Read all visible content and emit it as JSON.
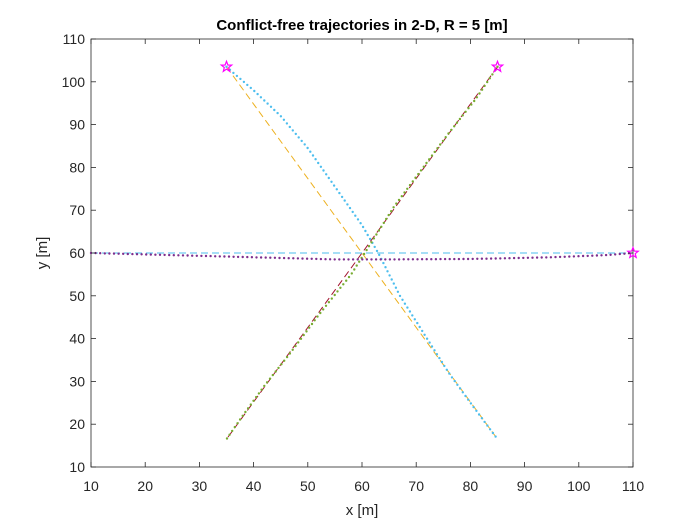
{
  "chart_data": {
    "type": "line",
    "title": "Conflict-free trajectories in 2-D, R = 5 [m]",
    "xlabel": "x [m]",
    "ylabel": "y [m]",
    "xlim": [
      10,
      110
    ],
    "ylim": [
      10,
      110
    ],
    "xticks": [
      10,
      20,
      30,
      40,
      50,
      60,
      70,
      80,
      90,
      100,
      110
    ],
    "yticks": [
      10,
      20,
      30,
      40,
      50,
      60,
      70,
      80,
      90,
      100,
      110
    ],
    "grid": false,
    "legend": "none",
    "colors": {
      "blue": "#4DBEEE",
      "green": "#77AC30",
      "purple": "#7E2F8E",
      "orange": "#EDB120",
      "red": "#A2142F",
      "star": "#FF00FF"
    },
    "planned_paths": [
      {
        "color": "orange",
        "style": "dashed",
        "points": [
          [
            35,
            103.5
          ],
          [
            85,
            16.5
          ]
        ]
      },
      {
        "color": "red",
        "style": "dashed",
        "points": [
          [
            85,
            103.5
          ],
          [
            35,
            16.5
          ]
        ]
      },
      {
        "color": "blue",
        "style": "dashed",
        "points": [
          [
            10,
            60
          ],
          [
            110,
            60
          ]
        ]
      }
    ],
    "trajectories": [
      {
        "color": "blue",
        "style": "dotted",
        "points": [
          [
            35,
            103.5
          ],
          [
            40,
            98
          ],
          [
            45,
            92
          ],
          [
            50,
            84.5
          ],
          [
            55,
            75.5
          ],
          [
            60,
            66.5
          ],
          [
            63,
            60
          ],
          [
            67,
            50
          ],
          [
            72,
            40
          ],
          [
            76,
            32
          ],
          [
            80,
            25
          ],
          [
            85,
            16.5
          ]
        ]
      },
      {
        "color": "green",
        "style": "dotted",
        "points": [
          [
            85,
            103.5
          ],
          [
            81,
            96
          ],
          [
            76,
            88
          ],
          [
            71,
            79.5
          ],
          [
            66,
            71
          ],
          [
            62,
            63
          ],
          [
            58,
            55
          ],
          [
            52,
            45.5
          ],
          [
            47,
            37
          ],
          [
            42,
            29
          ],
          [
            38,
            22
          ],
          [
            35,
            16.5
          ]
        ]
      },
      {
        "color": "purple",
        "style": "dotted",
        "points": [
          [
            10,
            60
          ],
          [
            25,
            59.5
          ],
          [
            40,
            59
          ],
          [
            55,
            58.5
          ],
          [
            65,
            58.5
          ],
          [
            80,
            58.6
          ],
          [
            95,
            59
          ],
          [
            105,
            59.5
          ],
          [
            110,
            60
          ]
        ]
      }
    ],
    "start_markers": [
      [
        35,
        103.5
      ],
      [
        85,
        103.5
      ],
      [
        110,
        60
      ]
    ]
  }
}
